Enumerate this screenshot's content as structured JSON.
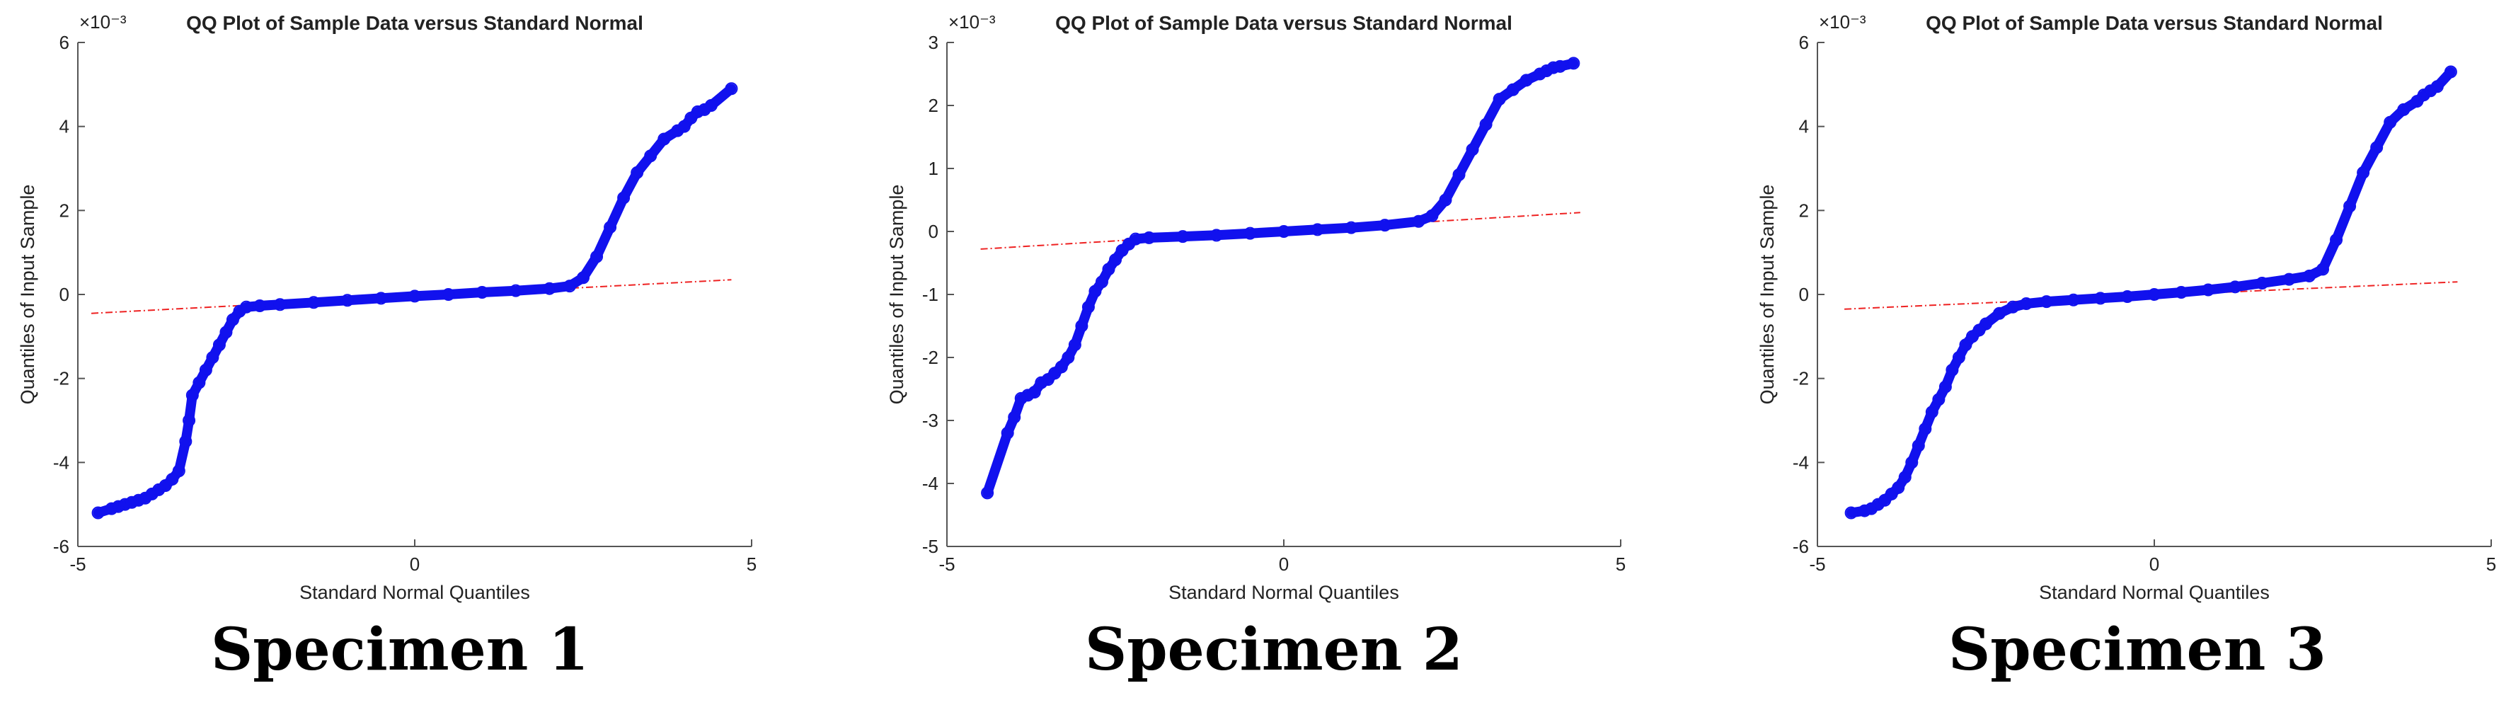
{
  "chart_data": [
    {
      "type": "scatter",
      "title": "QQ Plot of Sample Data versus Standard Normal",
      "xlabel": "Standard Normal Quantiles",
      "ylabel": "Quantiles of Input Sample",
      "exponent_label": "×10⁻³",
      "xlim": [
        -5,
        5
      ],
      "ylim": [
        -6,
        6
      ],
      "xticks": [
        -5,
        0,
        5
      ],
      "yticks": [
        -6,
        -4,
        -2,
        0,
        2,
        4,
        6
      ],
      "reference_line": {
        "x": [
          -4.8,
          4.7
        ],
        "y": [
          -0.45,
          0.35
        ]
      },
      "points": {
        "x": [
          -4.7,
          -4.5,
          -4.4,
          -4.3,
          -4.2,
          -4.1,
          -4.0,
          -3.9,
          -3.8,
          -3.7,
          -3.6,
          -3.5,
          -3.4,
          -3.35,
          -3.3,
          -3.2,
          -3.1,
          -3.0,
          -2.9,
          -2.8,
          -2.7,
          -2.6,
          -2.5,
          -2.3,
          -2.0,
          -1.5,
          -1.0,
          -0.5,
          0.0,
          0.5,
          1.0,
          1.5,
          2.0,
          2.3,
          2.5,
          2.7,
          2.9,
          3.1,
          3.3,
          3.5,
          3.7,
          3.9,
          4.0,
          4.1,
          4.2,
          4.3,
          4.4,
          4.7
        ],
        "y": [
          -5.2,
          -5.1,
          -5.05,
          -5.0,
          -4.95,
          -4.9,
          -4.85,
          -4.75,
          -4.65,
          -4.55,
          -4.4,
          -4.2,
          -3.5,
          -3.0,
          -2.4,
          -2.1,
          -1.8,
          -1.5,
          -1.2,
          -0.9,
          -0.6,
          -0.4,
          -0.3,
          -0.27,
          -0.24,
          -0.19,
          -0.14,
          -0.09,
          -0.04,
          0.0,
          0.05,
          0.09,
          0.14,
          0.2,
          0.4,
          0.9,
          1.6,
          2.3,
          2.9,
          3.3,
          3.7,
          3.9,
          4.0,
          4.2,
          4.35,
          4.4,
          4.5,
          4.9
        ]
      }
    },
    {
      "type": "scatter",
      "title": "QQ Plot of Sample Data versus Standard Normal",
      "xlabel": "Standard Normal Quantiles",
      "ylabel": "Quantiles of Input Sample",
      "exponent_label": "×10⁻³",
      "xlim": [
        -5,
        5
      ],
      "ylim": [
        -5,
        3
      ],
      "xticks": [
        -5,
        0,
        5
      ],
      "yticks": [
        -5,
        -4,
        -3,
        -2,
        -1,
        0,
        1,
        2,
        3
      ],
      "reference_line": {
        "x": [
          -4.5,
          4.4
        ],
        "y": [
          -0.28,
          0.3
        ]
      },
      "points": {
        "x": [
          -4.4,
          -4.1,
          -4.0,
          -3.9,
          -3.8,
          -3.7,
          -3.6,
          -3.5,
          -3.4,
          -3.3,
          -3.2,
          -3.1,
          -3.0,
          -2.9,
          -2.8,
          -2.7,
          -2.6,
          -2.5,
          -2.4,
          -2.3,
          -2.2,
          -2.0,
          -1.5,
          -1.0,
          -0.5,
          0.0,
          0.5,
          1.0,
          1.5,
          2.0,
          2.2,
          2.4,
          2.6,
          2.8,
          3.0,
          3.2,
          3.4,
          3.6,
          3.8,
          3.9,
          4.0,
          4.1,
          4.3
        ],
        "y": [
          -4.15,
          -3.2,
          -2.95,
          -2.65,
          -2.6,
          -2.55,
          -2.4,
          -2.35,
          -2.25,
          -2.15,
          -2.0,
          -1.8,
          -1.5,
          -1.2,
          -0.95,
          -0.8,
          -0.6,
          -0.45,
          -0.3,
          -0.2,
          -0.12,
          -0.1,
          -0.08,
          -0.06,
          -0.03,
          0.0,
          0.03,
          0.06,
          0.1,
          0.16,
          0.25,
          0.5,
          0.9,
          1.3,
          1.7,
          2.1,
          2.25,
          2.4,
          2.5,
          2.55,
          2.6,
          2.62,
          2.67
        ]
      }
    },
    {
      "type": "scatter",
      "title": "QQ Plot of Sample Data versus Standard Normal",
      "xlabel": "Standard Normal Quantiles",
      "ylabel": "Quantiles of Input Sample",
      "exponent_label": "×10⁻³",
      "xlim": [
        -5,
        5
      ],
      "ylim": [
        -6,
        6
      ],
      "xticks": [
        -5,
        0,
        5
      ],
      "yticks": [
        -6,
        -4,
        -2,
        0,
        2,
        4,
        6
      ],
      "reference_line": {
        "x": [
          -4.6,
          4.5
        ],
        "y": [
          -0.35,
          0.3
        ]
      },
      "points": {
        "x": [
          -4.5,
          -4.3,
          -4.2,
          -4.1,
          -4.0,
          -3.9,
          -3.8,
          -3.7,
          -3.6,
          -3.5,
          -3.4,
          -3.3,
          -3.2,
          -3.1,
          -3.0,
          -2.9,
          -2.8,
          -2.7,
          -2.6,
          -2.5,
          -2.3,
          -2.1,
          -1.9,
          -1.6,
          -1.2,
          -0.8,
          -0.4,
          0.0,
          0.4,
          0.8,
          1.2,
          1.6,
          2.0,
          2.3,
          2.5,
          2.7,
          2.9,
          3.1,
          3.3,
          3.5,
          3.7,
          3.9,
          4.0,
          4.1,
          4.2,
          4.4
        ],
        "y": [
          -5.2,
          -5.15,
          -5.1,
          -5.0,
          -4.9,
          -4.75,
          -4.6,
          -4.35,
          -4.0,
          -3.6,
          -3.2,
          -2.8,
          -2.5,
          -2.2,
          -1.8,
          -1.5,
          -1.2,
          -1.0,
          -0.85,
          -0.7,
          -0.45,
          -0.3,
          -0.22,
          -0.17,
          -0.13,
          -0.09,
          -0.05,
          0.0,
          0.05,
          0.11,
          0.18,
          0.27,
          0.36,
          0.44,
          0.6,
          1.3,
          2.1,
          2.9,
          3.5,
          4.1,
          4.4,
          4.6,
          4.75,
          4.85,
          4.95,
          5.3
        ]
      }
    }
  ],
  "captions": [
    "Specimen 1",
    "Specimen 2",
    "Specimen 3"
  ],
  "colors": {
    "points": "#1111ee",
    "reference": "#ee2222",
    "axis": "#555555",
    "text": "#222222"
  }
}
